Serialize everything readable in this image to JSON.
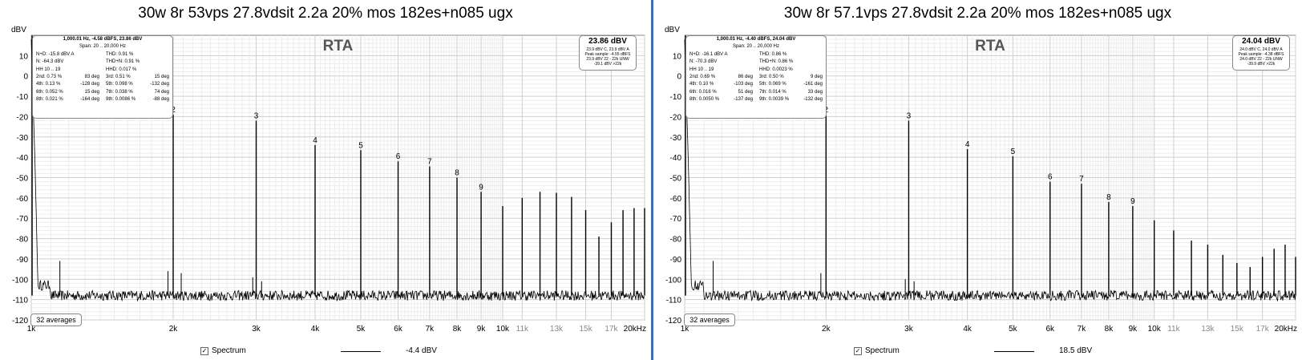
{
  "panels": [
    {
      "title": "30w 8r 53vps 27.8vdsit 2.2a 20% mos 182es+n085 ugx",
      "plot_title": "RTA",
      "info": {
        "line1": "1,000.01 Hz, -4.58 dBFS, 23.86 dBV",
        "span": "Span: 20 .. 20,000 Hz",
        "nd": "N+D: -15.8 dBV A",
        "thd": "THD: 0.91 %",
        "n": "N: -64.3 dBV",
        "thdn": "THD+N: 0.91 %",
        "hh": "HH 10 .. 19",
        "hhd": "HHD: 0.017 %",
        "harm": [
          [
            "2nd: 0.73 %",
            "83 deg",
            "3rd: 0.51 %",
            "15 deg"
          ],
          [
            "4th: 0.13 %",
            "-128 deg",
            "5th: 0.098 %",
            "-132 deg"
          ],
          [
            "6th: 0.052 %",
            "15 deg",
            "7th: 0.038 %",
            "74 deg"
          ],
          [
            "8th: 0.021 %",
            "-164 deg",
            "9th: 0.0086 %",
            "-88 deg"
          ]
        ]
      },
      "level": {
        "big": "23.86 dBV",
        "l1": "23.9 dBV C, 23.9 dBV A",
        "l2": "Peak sample: -4.55 dBFS",
        "l3": "23.9 dBV 22 - 22k UNW",
        "l4": "-39.1 dBV >22k"
      },
      "averages": "32 averages",
      "legend_label": "Spectrum",
      "legend_value": "-4.4 dBV"
    },
    {
      "title": "30w 8r 57.1vps 27.8vdsit 2.2a 20% mos 182es+n085 ugx",
      "plot_title": "RTA",
      "info": {
        "line1": "1,000.01 Hz, -4.40 dBFS, 24.04 dBV",
        "span": "Span: 20 .. 20,000 Hz",
        "nd": "N+D: -16.1 dBV A",
        "thd": "THD: 0.86 %",
        "n": "N: -70.3 dBV",
        "thdn": "THD+N: 0.86 %",
        "hh": "HH 10 .. 19",
        "hhd": "HHD: 0.0023 %",
        "harm": [
          [
            "2nd: 0.69 %",
            "86 deg",
            "3rd: 0.50 %",
            "9 deg"
          ],
          [
            "4th: 0.10 %",
            "-103 deg",
            "5th: 0.069 %",
            "-161 deg"
          ],
          [
            "6th: 0.016 %",
            "51 deg",
            "7th: 0.014 %",
            "33 deg"
          ],
          [
            "8th: 0.0050 %",
            "-137 deg",
            "9th: 0.0039 %",
            "-132 deg"
          ]
        ]
      },
      "level": {
        "big": "24.04 dBV",
        "l1": "24.0 dBV C, 24.0 dBV A",
        "l2": "Peak sample: -4.38 dBFS",
        "l3": "24.0 dBV 22 - 22k UNW",
        "l4": "-39.9 dBV >22k"
      },
      "averages": "32 averages",
      "legend_label": "Spectrum",
      "legend_value": "18.5 dBV"
    }
  ],
  "chart_data": [
    {
      "type": "line",
      "title": "RTA",
      "ylabel": "dBV",
      "xlabel": "",
      "x_scale": "log",
      "xlim": [
        1000,
        20000
      ],
      "ylim": [
        -120,
        20
      ],
      "y_ticks": [
        10,
        0,
        -10,
        -20,
        -30,
        -40,
        -50,
        -60,
        -70,
        -80,
        -90,
        -100,
        -110,
        -120
      ],
      "x_ticks": [
        {
          "v": 1000,
          "label": "1k",
          "major": true
        },
        {
          "v": 2000,
          "label": "2k",
          "major": true
        },
        {
          "v": 3000,
          "label": "3k",
          "major": true
        },
        {
          "v": 4000,
          "label": "4k",
          "major": true
        },
        {
          "v": 5000,
          "label": "5k",
          "major": true
        },
        {
          "v": 6000,
          "label": "6k",
          "major": true
        },
        {
          "v": 7000,
          "label": "7k",
          "major": true
        },
        {
          "v": 8000,
          "label": "8k",
          "major": true
        },
        {
          "v": 9000,
          "label": "9k",
          "major": true
        },
        {
          "v": 10000,
          "label": "10k",
          "major": true
        },
        {
          "v": 11000,
          "label": "11k",
          "major": false
        },
        {
          "v": 13000,
          "label": "13k",
          "major": false
        },
        {
          "v": 15000,
          "label": "15k",
          "major": false
        },
        {
          "v": 17000,
          "label": "17k",
          "major": false
        },
        {
          "v": 20000,
          "label": "20kHz",
          "major": true
        }
      ],
      "grid": true,
      "noise_floor": -108,
      "harmonics": [
        {
          "f": 2000,
          "dbv": -19,
          "label": "2"
        },
        {
          "f": 3000,
          "dbv": -22,
          "label": "3"
        },
        {
          "f": 4000,
          "dbv": -34,
          "label": "4"
        },
        {
          "f": 5000,
          "dbv": -36.5,
          "label": "5"
        },
        {
          "f": 6000,
          "dbv": -42,
          "label": "6"
        },
        {
          "f": 7000,
          "dbv": -44.5,
          "label": "7"
        },
        {
          "f": 8000,
          "dbv": -50,
          "label": "8"
        },
        {
          "f": 9000,
          "dbv": -57,
          "label": "9"
        },
        {
          "f": 10000,
          "dbv": -64,
          "label": ""
        },
        {
          "f": 11000,
          "dbv": -60,
          "label": ""
        },
        {
          "f": 12000,
          "dbv": -57,
          "label": ""
        },
        {
          "f": 13000,
          "dbv": -57.5,
          "label": ""
        },
        {
          "f": 14000,
          "dbv": -59.5,
          "label": ""
        },
        {
          "f": 15000,
          "dbv": -66,
          "label": ""
        },
        {
          "f": 16000,
          "dbv": -79,
          "label": ""
        },
        {
          "f": 17000,
          "dbv": -72,
          "label": ""
        },
        {
          "f": 18000,
          "dbv": -66,
          "label": ""
        },
        {
          "f": 19000,
          "dbv": -65,
          "label": ""
        },
        {
          "f": 20000,
          "dbv": -65,
          "label": ""
        }
      ],
      "spurs": [
        {
          "f": 1150,
          "dbv": -91
        },
        {
          "f": 1950,
          "dbv": -96
        },
        {
          "f": 2080,
          "dbv": -97
        },
        {
          "f": 2950,
          "dbv": -99
        },
        {
          "f": 3080,
          "dbv": -101
        }
      ]
    },
    {
      "type": "line",
      "title": "RTA",
      "ylabel": "dBV",
      "xlabel": "",
      "x_scale": "log",
      "xlim": [
        1000,
        20000
      ],
      "ylim": [
        -120,
        20
      ],
      "y_ticks": [
        10,
        0,
        -10,
        -20,
        -30,
        -40,
        -50,
        -60,
        -70,
        -80,
        -90,
        -100,
        -110,
        -120
      ],
      "x_ticks": [
        {
          "v": 1000,
          "label": "1k",
          "major": true
        },
        {
          "v": 2000,
          "label": "2k",
          "major": true
        },
        {
          "v": 3000,
          "label": "3k",
          "major": true
        },
        {
          "v": 4000,
          "label": "4k",
          "major": true
        },
        {
          "v": 5000,
          "label": "5k",
          "major": true
        },
        {
          "v": 6000,
          "label": "6k",
          "major": true
        },
        {
          "v": 7000,
          "label": "7k",
          "major": true
        },
        {
          "v": 8000,
          "label": "8k",
          "major": true
        },
        {
          "v": 9000,
          "label": "9k",
          "major": true
        },
        {
          "v": 10000,
          "label": "10k",
          "major": true
        },
        {
          "v": 11000,
          "label": "11k",
          "major": false
        },
        {
          "v": 13000,
          "label": "13k",
          "major": false
        },
        {
          "v": 15000,
          "label": "15k",
          "major": false
        },
        {
          "v": 17000,
          "label": "17k",
          "major": false
        },
        {
          "v": 20000,
          "label": "20kHz",
          "major": true
        }
      ],
      "grid": true,
      "noise_floor": -108,
      "harmonics": [
        {
          "f": 2000,
          "dbv": -19,
          "label": "2"
        },
        {
          "f": 3000,
          "dbv": -22,
          "label": "3"
        },
        {
          "f": 4000,
          "dbv": -36,
          "label": "4"
        },
        {
          "f": 5000,
          "dbv": -39.5,
          "label": "5"
        },
        {
          "f": 6000,
          "dbv": -52,
          "label": "6"
        },
        {
          "f": 7000,
          "dbv": -53,
          "label": "7"
        },
        {
          "f": 8000,
          "dbv": -62,
          "label": "8"
        },
        {
          "f": 9000,
          "dbv": -64,
          "label": "9"
        },
        {
          "f": 10000,
          "dbv": -71,
          "label": ""
        },
        {
          "f": 11000,
          "dbv": -76,
          "label": ""
        },
        {
          "f": 12000,
          "dbv": -81,
          "label": ""
        },
        {
          "f": 13000,
          "dbv": -83,
          "label": ""
        },
        {
          "f": 14000,
          "dbv": -88,
          "label": ""
        },
        {
          "f": 15000,
          "dbv": -92,
          "label": ""
        },
        {
          "f": 16000,
          "dbv": -94,
          "label": ""
        },
        {
          "f": 17000,
          "dbv": -89,
          "label": ""
        },
        {
          "f": 18000,
          "dbv": -85,
          "label": ""
        },
        {
          "f": 19000,
          "dbv": -83,
          "label": ""
        },
        {
          "f": 20000,
          "dbv": -89,
          "label": ""
        }
      ],
      "spurs": [
        {
          "f": 1150,
          "dbv": -91
        },
        {
          "f": 1950,
          "dbv": -97
        },
        {
          "f": 2950,
          "dbv": -100
        },
        {
          "f": 3080,
          "dbv": -101
        }
      ]
    }
  ]
}
